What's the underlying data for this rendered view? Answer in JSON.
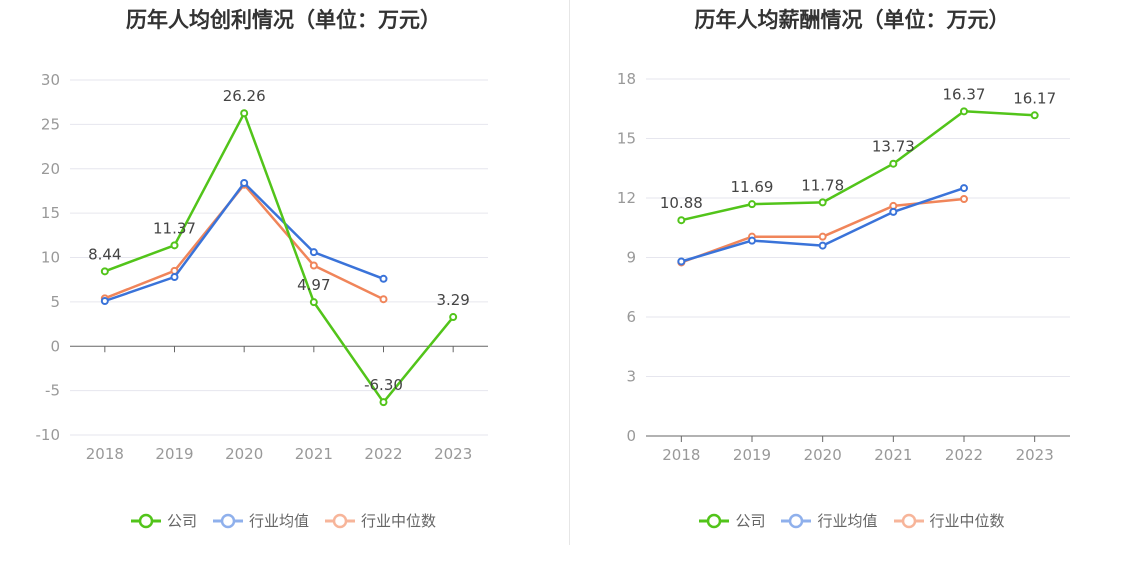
{
  "left_chart": {
    "title": "历年人均创利情况（单位：万元）"
  },
  "right_chart": {
    "title": "历年人均薪酬情况（单位：万元）"
  },
  "legend": {
    "company": "公司",
    "industry_avg": "行业均值",
    "industry_median": "行业中位数"
  },
  "colors": {
    "company": "#52c41a",
    "industry_avg": "#3a73d9",
    "industry_median": "#f0855a",
    "grid": "#e6e6ee",
    "axis": "#666666",
    "tick_text": "#999999",
    "label_text": "#444444"
  },
  "chart_data": [
    {
      "type": "line",
      "title": "历年人均创利情况（单位：万元）",
      "categories": [
        "2018",
        "2019",
        "2020",
        "2021",
        "2022",
        "2023"
      ],
      "ylim": [
        -10,
        30
      ],
      "yticks": [
        -10,
        -5,
        0,
        5,
        10,
        15,
        20,
        25,
        30
      ],
      "grid": true,
      "legend": "bottom",
      "series": [
        {
          "name": "公司",
          "values": [
            8.44,
            11.37,
            26.26,
            4.97,
            -6.3,
            3.29
          ],
          "labels": [
            "8.44",
            "11.37",
            "26.26",
            "4.97",
            "-6.30",
            "3.29"
          ]
        },
        {
          "name": "行业均值",
          "values": [
            5.1,
            7.8,
            18.4,
            10.6,
            7.6,
            null
          ]
        },
        {
          "name": "行业中位数",
          "values": [
            5.4,
            8.5,
            18.2,
            9.1,
            5.3,
            null
          ]
        }
      ]
    },
    {
      "type": "line",
      "title": "历年人均薪酬情况（单位：万元）",
      "categories": [
        "2018",
        "2019",
        "2020",
        "2021",
        "2022",
        "2023"
      ],
      "ylim": [
        0,
        18
      ],
      "yticks": [
        0,
        3,
        6,
        9,
        12,
        15,
        18
      ],
      "grid": true,
      "legend": "bottom",
      "series": [
        {
          "name": "公司",
          "values": [
            10.88,
            11.69,
            11.78,
            13.73,
            16.37,
            16.17
          ],
          "labels": [
            "10.88",
            "11.69",
            "11.78",
            "13.73",
            "16.37",
            "16.17"
          ]
        },
        {
          "name": "行业均值",
          "values": [
            8.8,
            9.85,
            9.6,
            11.3,
            12.5,
            null
          ]
        },
        {
          "name": "行业中位数",
          "values": [
            8.75,
            10.05,
            10.05,
            11.6,
            11.95,
            null
          ]
        }
      ]
    }
  ]
}
